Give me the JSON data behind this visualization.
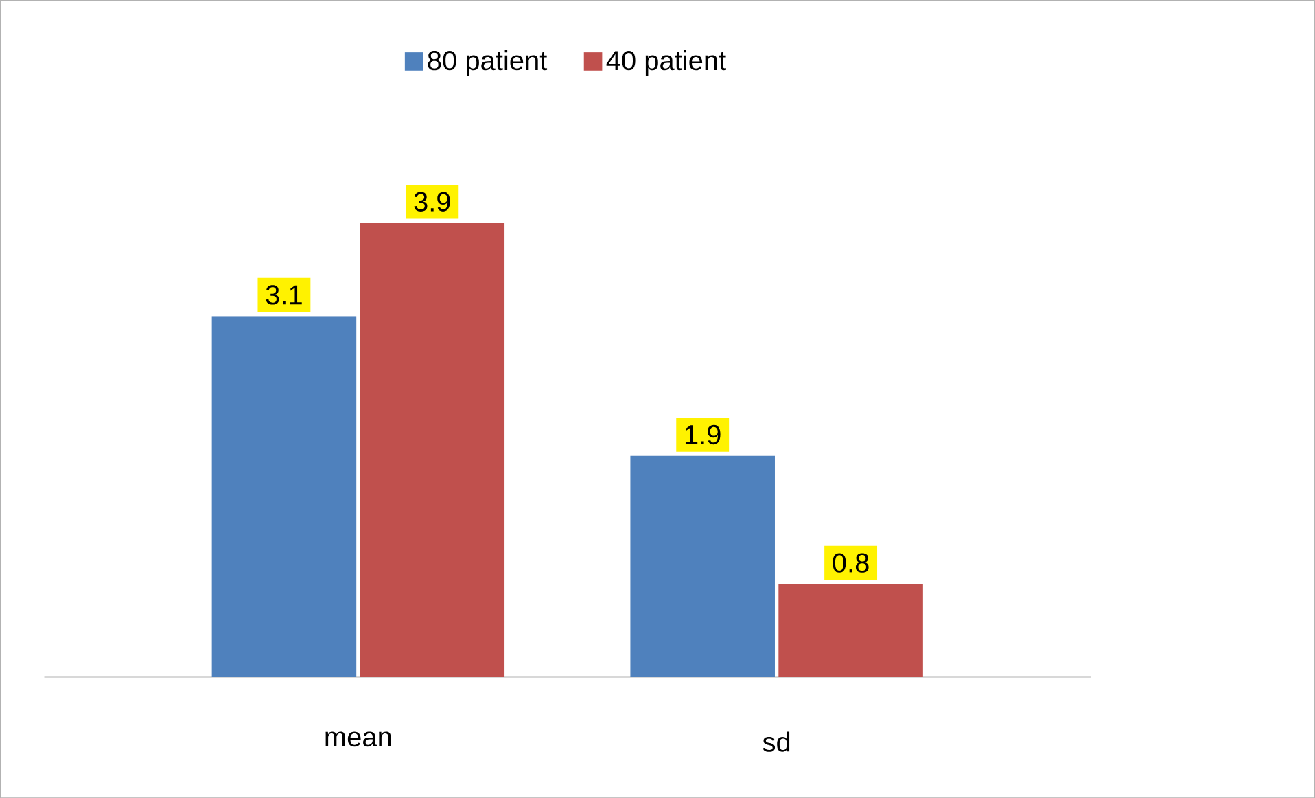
{
  "chart_data": {
    "type": "bar",
    "categories": [
      "mean",
      "sd"
    ],
    "series": [
      {
        "name": "80 patient",
        "color": "#4f81bd",
        "values": [
          3.1,
          1.9
        ]
      },
      {
        "name": "40 patient",
        "color": "#c0504d",
        "values": [
          3.9,
          0.8
        ]
      }
    ],
    "data_labels": true,
    "legend": "top"
  }
}
